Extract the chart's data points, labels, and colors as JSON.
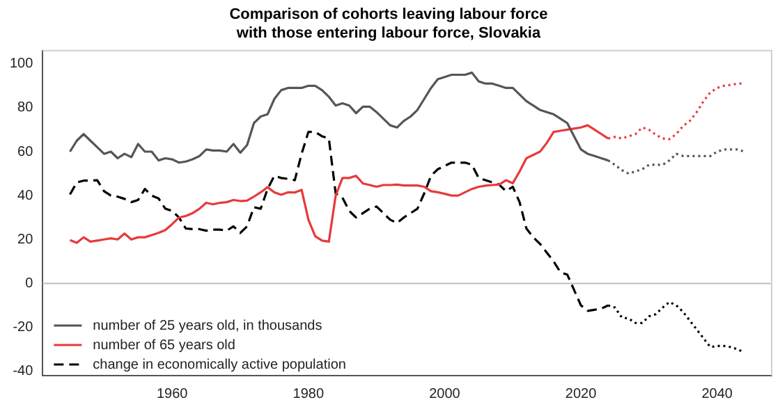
{
  "chart_data": {
    "type": "line",
    "title": "Comparison of cohorts leaving labour force\nwith those entering labour force, Slovakia",
    "xlim": [
      1941,
      2048
    ],
    "xticks": [
      1960,
      1980,
      2000,
      2020,
      2040
    ],
    "ylim": [
      -42,
      106
    ],
    "yticks": [
      -40,
      -20,
      0,
      20,
      40,
      60,
      80,
      100
    ],
    "grid": false,
    "legend": "bottom left",
    "marker": "none",
    "ref_lines": [
      {
        "axis": "y",
        "value": 0,
        "color": "#bdbdbd"
      }
    ],
    "series": [
      {
        "name": "number of 25 years old, in thousands",
        "color": "#555555",
        "line_style": "solid",
        "x": [
          1945,
          1946,
          1947,
          1948,
          1949,
          1950,
          1951,
          1952,
          1953,
          1954,
          1955,
          1956,
          1957,
          1958,
          1959,
          1960,
          1961,
          1962,
          1963,
          1964,
          1965,
          1966,
          1967,
          1968,
          1969,
          1970,
          1971,
          1972,
          1973,
          1974,
          1975,
          1976,
          1977,
          1978,
          1979,
          1980,
          1981,
          1982,
          1983,
          1984,
          1985,
          1986,
          1987,
          1988,
          1989,
          1990,
          1991,
          1992,
          1993,
          1994,
          1995,
          1996,
          1997,
          1998,
          1999,
          2000,
          2001,
          2002,
          2003,
          2004,
          2005,
          2006,
          2007,
          2008,
          2009,
          2010,
          2011,
          2012,
          2013,
          2014,
          2015,
          2016,
          2017,
          2018,
          2019,
          2020,
          2021,
          2022,
          2023,
          2024
        ],
        "values": [
          60,
          65,
          68,
          65,
          62,
          59,
          60,
          57,
          59,
          57.5,
          63.5,
          60,
          60,
          56,
          57,
          56.5,
          55,
          55.5,
          56.5,
          58,
          61,
          60.5,
          60.5,
          60,
          63.5,
          59.5,
          63,
          73,
          76,
          77,
          84,
          88,
          89,
          89,
          89,
          90,
          90,
          88,
          85,
          81,
          82,
          81,
          77.5,
          80.5,
          80.5,
          78,
          75,
          72,
          71,
          74,
          76,
          79,
          84,
          89,
          93,
          94,
          95,
          95,
          95,
          96,
          92,
          91,
          91,
          90,
          89,
          89,
          86,
          83,
          81,
          79,
          78,
          77,
          75,
          73,
          67,
          61,
          59,
          58,
          57,
          56
        ]
      },
      {
        "color": "#e8393a",
        "name": "number of 65 years old",
        "line_style": "solid",
        "x": [
          1945,
          1946,
          1947,
          1948,
          1949,
          1950,
          1951,
          1952,
          1953,
          1954,
          1955,
          1956,
          1957,
          1958,
          1959,
          1960,
          1961,
          1962,
          1963,
          1964,
          1965,
          1966,
          1967,
          1968,
          1969,
          1970,
          1971,
          1972,
          1973,
          1974,
          1975,
          1976,
          1977,
          1978,
          1979,
          1980,
          1981,
          1982,
          1983,
          1984,
          1985,
          1986,
          1987,
          1988,
          1989,
          1990,
          1991,
          1992,
          1993,
          1994,
          1995,
          1996,
          1997,
          1998,
          1999,
          2000,
          2001,
          2002,
          2003,
          2004,
          2005,
          2006,
          2007,
          2008,
          2009,
          2010,
          2011,
          2012,
          2013,
          2014,
          2015,
          2016,
          2017,
          2018,
          2019,
          2020,
          2021,
          2022,
          2023,
          2024
        ],
        "values": [
          19.7,
          18.5,
          21,
          19,
          19.5,
          20,
          20.5,
          20,
          22.7,
          20,
          21,
          21,
          22,
          23,
          24.3,
          27,
          30,
          30.7,
          32,
          34,
          36.7,
          36,
          36.7,
          37,
          38,
          37.5,
          37.7,
          39.5,
          41.5,
          43.8,
          41.5,
          40.4,
          41.5,
          41.4,
          42.6,
          29,
          21.5,
          19.5,
          19,
          40,
          48,
          48,
          49,
          45.5,
          44.8,
          44,
          44.8,
          44.8,
          45,
          44.6,
          44.6,
          44.6,
          44,
          42,
          41.5,
          40.8,
          40,
          40,
          41.5,
          43,
          44,
          44.5,
          44.8,
          45,
          47,
          45.6,
          51,
          57,
          58.5,
          60,
          64,
          69,
          69.5,
          70,
          70.5,
          71,
          72,
          70,
          68,
          66
        ]
      },
      {
        "color": "#000000",
        "name": "change in economically active population",
        "line_style": "dashed",
        "x": [
          1945,
          1946,
          1947,
          1948,
          1949,
          1950,
          1951,
          1952,
          1953,
          1954,
          1955,
          1956,
          1957,
          1958,
          1959,
          1960,
          1961,
          1962,
          1963,
          1964,
          1965,
          1966,
          1967,
          1968,
          1969,
          1970,
          1971,
          1972,
          1973,
          1974,
          1975,
          1976,
          1977,
          1978,
          1979,
          1980,
          1981,
          1982,
          1983,
          1984,
          1985,
          1986,
          1987,
          1988,
          1989,
          1990,
          1991,
          1992,
          1993,
          1994,
          1995,
          1996,
          1997,
          1998,
          1999,
          2000,
          2001,
          2002,
          2003,
          2004,
          2005,
          2006,
          2007,
          2008,
          2009,
          2010,
          2011,
          2012,
          2013,
          2014,
          2015,
          2016,
          2017,
          2018,
          2019,
          2020,
          2021,
          2022,
          2023,
          2024
        ],
        "values": [
          40.5,
          46,
          46.8,
          46.8,
          47,
          42,
          40,
          39.5,
          38.5,
          37,
          38,
          43,
          40,
          38.7,
          34,
          33,
          30,
          25,
          24.7,
          24.7,
          24,
          24.5,
          24.5,
          24,
          26,
          23,
          26,
          34.7,
          34,
          43,
          49,
          48,
          47.6,
          47,
          59,
          69,
          69,
          67,
          66,
          41,
          39,
          33,
          30,
          32,
          34,
          35,
          32,
          29,
          27.5,
          30,
          32,
          34,
          41,
          49,
          52,
          53.5,
          55,
          55,
          55,
          54,
          48,
          47,
          46,
          45,
          42,
          44,
          37,
          25,
          21,
          18,
          14,
          10,
          5,
          4,
          -3,
          -10,
          -12.5,
          -12,
          -11.5,
          -10
        ]
      },
      {
        "color": "#555555",
        "line_style": "dotted",
        "x": [
          2024,
          2025,
          2026,
          2027,
          2028,
          2029,
          2030,
          2031,
          2032,
          2033,
          2034,
          2035,
          2036,
          2037,
          2038,
          2039,
          2040,
          2041,
          2042,
          2043,
          2044
        ],
        "values": [
          56,
          54,
          51.6,
          50,
          51,
          52,
          54,
          54,
          54,
          56,
          59,
          58,
          58,
          58,
          58,
          58,
          60,
          61,
          61,
          61,
          60
        ]
      },
      {
        "color": "#e8393a",
        "line_style": "dotted",
        "x": [
          2024,
          2025,
          2026,
          2027,
          2028,
          2029,
          2030,
          2031,
          2032,
          2033,
          2034,
          2035,
          2036,
          2037,
          2038,
          2039,
          2040,
          2041,
          2042,
          2043,
          2044
        ],
        "values": [
          66,
          66.7,
          66,
          67,
          68,
          71,
          70,
          67.7,
          66,
          65.7,
          68,
          71.7,
          74,
          78,
          83,
          87,
          89,
          90,
          90.4,
          91,
          91
        ]
      },
      {
        "color": "#000000",
        "line_style": "dotted",
        "x": [
          2024,
          2025,
          2026,
          2027,
          2028,
          2029,
          2030,
          2031,
          2032,
          2033,
          2034,
          2035,
          2036,
          2037,
          2038,
          2039,
          2040,
          2041,
          2042,
          2043,
          2044
        ],
        "values": [
          -10,
          -11,
          -15.5,
          -16,
          -18,
          -18,
          -15,
          -14,
          -11,
          -8.5,
          -10,
          -13,
          -17,
          -21,
          -25,
          -29,
          -28.5,
          -28.5,
          -29,
          -30,
          -31.5
        ]
      }
    ]
  }
}
